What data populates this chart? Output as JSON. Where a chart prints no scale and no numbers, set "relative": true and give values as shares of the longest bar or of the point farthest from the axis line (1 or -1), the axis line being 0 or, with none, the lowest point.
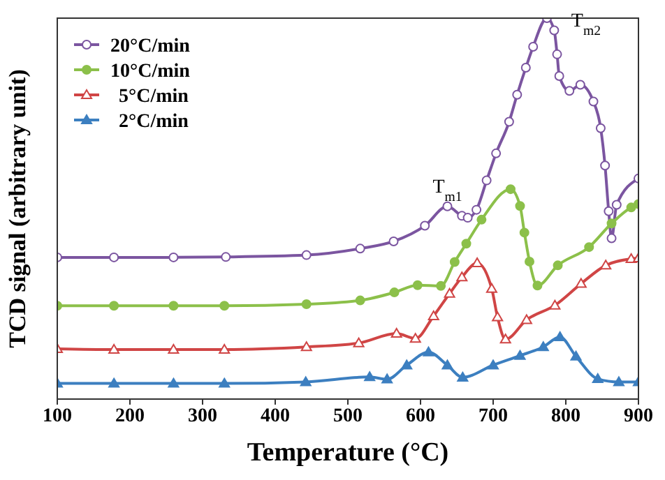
{
  "chart_data": {
    "type": "line",
    "relative": true,
    "xlabel": "Temperature (°C)",
    "ylabel": "TCD signal (arbitrary unit)",
    "xlim": [
      100,
      900
    ],
    "xticks": [
      100,
      200,
      300,
      400,
      500,
      600,
      700,
      800,
      900
    ],
    "grid": false,
    "legend": "top left",
    "line_style": "solid",
    "annotations": [
      {
        "text": "T$_{m1}$",
        "x": 637,
        "y": 0.506
      },
      {
        "text": "T$_{m2}$",
        "x": 774,
        "y": 1.0
      }
    ],
    "series": [
      {
        "name": "20°C/min",
        "color": "#7b55a0",
        "marker": "circle",
        "x": [
          100,
          178,
          260,
          332,
          443,
          517,
          563,
          606,
          637,
          657,
          665,
          677,
          691,
          704,
          722,
          733,
          745,
          755,
          774,
          784,
          788,
          791,
          805,
          820,
          838,
          848,
          854,
          859,
          863,
          870,
          900
        ],
        "values": [
          0.372,
          0.372,
          0.372,
          0.373,
          0.378,
          0.395,
          0.414,
          0.455,
          0.506,
          0.481,
          0.476,
          0.497,
          0.574,
          0.645,
          0.728,
          0.799,
          0.87,
          0.925,
          1.0,
          0.968,
          0.905,
          0.848,
          0.809,
          0.825,
          0.781,
          0.711,
          0.613,
          0.493,
          0.422,
          0.51,
          0.579
        ]
      },
      {
        "name": "10°C/min",
        "color": "#8cc04a",
        "marker": "circle",
        "x": [
          100,
          178,
          260,
          330,
          443,
          517,
          564,
          596,
          628,
          647,
          663,
          684,
          724,
          737,
          743,
          750,
          761,
          789,
          832,
          863,
          890,
          900
        ],
        "values": [
          0.245,
          0.245,
          0.245,
          0.245,
          0.249,
          0.259,
          0.28,
          0.299,
          0.297,
          0.36,
          0.408,
          0.471,
          0.551,
          0.507,
          0.437,
          0.361,
          0.298,
          0.351,
          0.399,
          0.461,
          0.503,
          0.512
        ]
      },
      {
        "name": "5°C/min",
        "color": "#d04545",
        "marker": "triangle",
        "x": [
          100,
          178,
          260,
          330,
          443,
          515,
          567,
          593,
          618,
          640,
          657,
          678,
          698,
          706,
          717,
          746,
          785,
          821,
          855,
          890,
          900
        ],
        "values": [
          0.132,
          0.13,
          0.13,
          0.13,
          0.137,
          0.147,
          0.172,
          0.159,
          0.218,
          0.277,
          0.32,
          0.357,
          0.29,
          0.215,
          0.157,
          0.208,
          0.246,
          0.303,
          0.351,
          0.368,
          0.37
        ]
      },
      {
        "name": "2°C/min",
        "color": "#3c7fc0",
        "marker": "triangle",
        "x": [
          100,
          178,
          260,
          330,
          442,
          530,
          554,
          581,
          611,
          637,
          658,
          700,
          737,
          769,
          792,
          814,
          844,
          873,
          900
        ],
        "values": [
          0.041,
          0.041,
          0.041,
          0.041,
          0.045,
          0.058,
          0.052,
          0.089,
          0.123,
          0.089,
          0.057,
          0.089,
          0.114,
          0.137,
          0.163,
          0.112,
          0.053,
          0.045,
          0.045
        ]
      }
    ]
  }
}
